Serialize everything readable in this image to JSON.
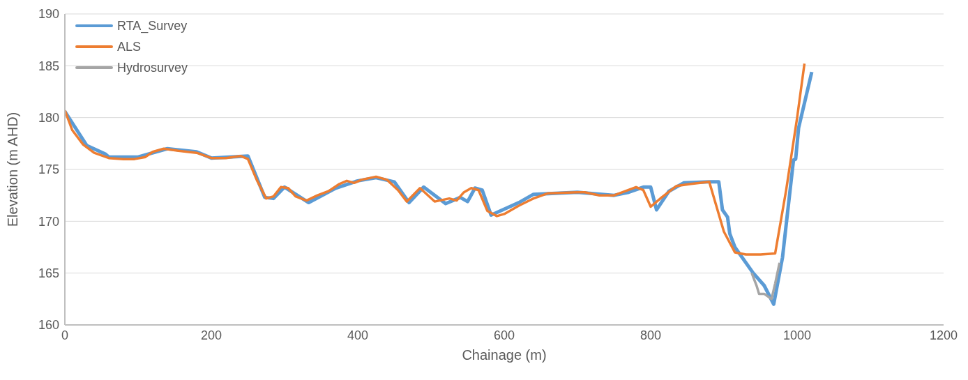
{
  "chart_data": {
    "type": "line",
    "xlabel": "Chainage (m)",
    "ylabel": "Elevation (m AHD)",
    "xlim": [
      0,
      1200
    ],
    "xticks": [
      0,
      200,
      400,
      600,
      800,
      1000,
      1200
    ],
    "ylim": [
      160,
      190
    ],
    "yticks": [
      160,
      165,
      170,
      175,
      180,
      185,
      190
    ],
    "grid": "y",
    "legend": "top left",
    "marker": "none",
    "line_style": "solid",
    "series": [
      {
        "name": "RTA_Survey",
        "color": "#5b9bd5",
        "x": [
          0,
          30,
          55,
          60,
          100,
          140,
          180,
          200,
          250,
          273,
          285,
          300,
          333,
          370,
          400,
          425,
          450,
          470,
          490,
          520,
          540,
          550,
          560,
          570,
          582,
          620,
          640,
          700,
          750,
          770,
          790,
          800,
          808,
          825,
          845,
          880,
          893,
          898,
          905,
          908,
          915,
          940,
          955,
          968,
          980,
          995,
          998,
          1002,
          1020
        ],
        "values": [
          180.6,
          177.3,
          176.5,
          176.2,
          176.2,
          177.0,
          176.7,
          176.1,
          176.3,
          172.3,
          172.2,
          173.3,
          171.8,
          173.2,
          173.9,
          174.2,
          173.8,
          171.8,
          173.3,
          171.7,
          172.3,
          171.9,
          173.2,
          173.0,
          170.6,
          171.8,
          172.6,
          172.8,
          172.5,
          172.8,
          173.3,
          173.3,
          171.1,
          172.9,
          173.7,
          173.8,
          173.8,
          171.1,
          170.4,
          168.8,
          167.5,
          165.0,
          163.8,
          162.0,
          166.5,
          175.9,
          176.0,
          179.0,
          184.4
        ]
      },
      {
        "name": "ALS",
        "color": "#ed7d31",
        "x": [
          0,
          10,
          25,
          40,
          60,
          80,
          95,
          110,
          120,
          135,
          155,
          180,
          200,
          220,
          240,
          250,
          262,
          275,
          285,
          295,
          305,
          315,
          330,
          345,
          360,
          375,
          385,
          395,
          405,
          425,
          440,
          455,
          467,
          485,
          505,
          525,
          535,
          545,
          555,
          565,
          577,
          590,
          600,
          620,
          640,
          660,
          700,
          710,
          730,
          750,
          780,
          790,
          800,
          815,
          835,
          855,
          880,
          900,
          915,
          930,
          950,
          970,
          985,
          1000,
          1010
        ],
        "values": [
          180.7,
          178.8,
          177.4,
          176.6,
          176.1,
          176.0,
          176.0,
          176.2,
          176.7,
          177.0,
          176.8,
          176.6,
          176.1,
          176.1,
          176.3,
          176.0,
          174.0,
          172.2,
          172.4,
          173.3,
          173.2,
          172.4,
          172.0,
          172.5,
          172.9,
          173.6,
          173.9,
          173.7,
          174.0,
          174.3,
          174.0,
          173.0,
          171.9,
          173.2,
          171.9,
          172.2,
          172.0,
          172.8,
          173.2,
          173.0,
          171.0,
          170.5,
          170.7,
          171.5,
          172.2,
          172.7,
          172.8,
          172.8,
          172.5,
          172.5,
          173.3,
          173.0,
          171.4,
          172.3,
          173.4,
          173.6,
          173.8,
          169.0,
          167.0,
          166.8,
          166.8,
          166.9,
          173.0,
          180.0,
          185.2
        ]
      },
      {
        "name": "Hydrosurvey",
        "color": "#a5a5a5",
        "x": [
          938,
          945,
          948,
          955,
          965,
          970,
          976
        ],
        "values": [
          165.0,
          163.7,
          163.0,
          163.0,
          162.5,
          164.0,
          166.0
        ]
      }
    ]
  }
}
